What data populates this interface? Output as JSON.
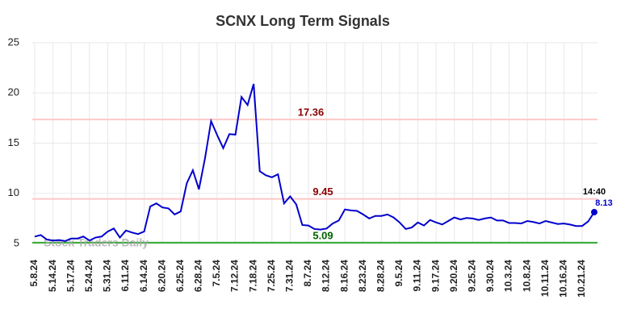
{
  "chart_data": {
    "type": "line",
    "title": "SCNX Long Term Signals",
    "watermark": "Stock Traders Daily",
    "categories": [
      "5.8.24",
      null,
      null,
      "5.14.24",
      null,
      null,
      "5.17.24",
      null,
      null,
      "5.24.24",
      null,
      null,
      "5.31.24",
      null,
      null,
      "6.11.24",
      null,
      null,
      "6.14.24",
      null,
      null,
      "6.20.24",
      null,
      null,
      "6.25.24",
      null,
      null,
      "6.28.24",
      null,
      null,
      "7.5.24",
      null,
      null,
      "7.12.24",
      null,
      null,
      "7.18.24",
      null,
      null,
      "7.25.24",
      null,
      null,
      "7.31.24",
      null,
      null,
      "8.7.24",
      null,
      null,
      "8.12.24",
      null,
      null,
      "8.16.24",
      null,
      null,
      "8.23.24",
      null,
      null,
      "8.28.24",
      null,
      null,
      "9.5.24",
      null,
      null,
      "9.11.24",
      null,
      null,
      "9.17.24",
      null,
      null,
      "9.20.24",
      null,
      null,
      "9.25.24",
      null,
      null,
      "9.30.24",
      null,
      null,
      "10.3.24",
      null,
      null,
      "10.8.24",
      null,
      null,
      "10.11.24",
      null,
      null,
      "10.16.24",
      null,
      null,
      "10.21.24",
      null,
      null
    ],
    "series": [
      {
        "color": "#0000cc",
        "values": [
          5.7,
          5.85,
          5.4,
          5.3,
          5.35,
          5.25,
          5.5,
          5.5,
          5.7,
          5.3,
          5.6,
          5.7,
          6.2,
          6.5,
          5.6,
          6.3,
          6.1,
          5.95,
          6.2,
          8.7,
          9.0,
          8.6,
          8.5,
          7.9,
          8.2,
          11.0,
          12.3,
          10.4,
          13.5,
          17.2,
          15.8,
          14.5,
          15.9,
          15.85,
          19.6,
          18.8,
          20.9,
          12.2,
          11.8,
          11.6,
          11.9,
          9.0,
          9.7,
          8.9,
          6.85,
          6.8,
          6.45,
          6.4,
          6.5,
          7.0,
          7.3,
          8.4,
          8.3,
          8.25,
          7.9,
          7.5,
          7.75,
          7.75,
          7.9,
          7.6,
          7.1,
          6.45,
          6.6,
          7.1,
          6.8,
          7.35,
          7.1,
          6.9,
          7.25,
          7.6,
          7.4,
          7.55,
          7.5,
          7.35,
          7.5,
          7.6,
          7.3,
          7.3,
          7.05,
          7.05,
          7.0,
          7.25,
          7.15,
          7.0,
          7.25,
          7.1,
          6.95,
          7.0,
          6.9,
          6.75,
          6.75,
          7.2,
          8.13
        ]
      }
    ],
    "last_time": "14:40",
    "hlines": [
      {
        "value": 17.36,
        "color": "#ffc8c8",
        "label_color": "#8b0000"
      },
      {
        "value": 9.45,
        "color": "#ffc8c8",
        "label_color": "#8b0000"
      },
      {
        "value": 5.09,
        "color": "#33aa33",
        "label_color": "#006400"
      }
    ],
    "ylim": [
      5,
      25
    ],
    "yticks": [
      5,
      10,
      15,
      20,
      25
    ],
    "grid": true
  }
}
